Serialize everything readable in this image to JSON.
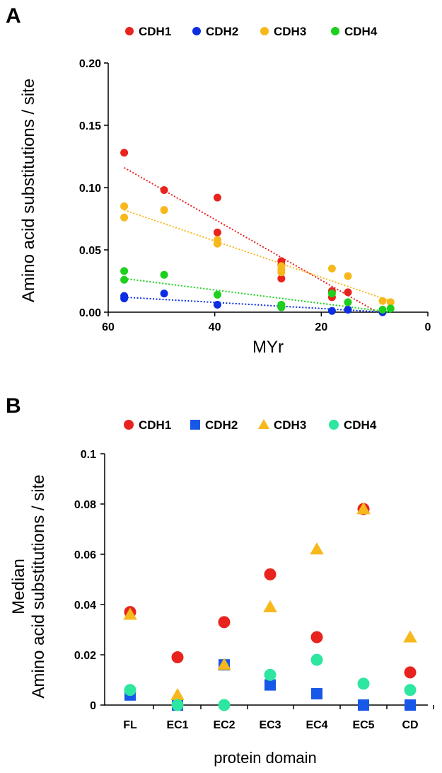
{
  "chart_data": [
    {
      "type": "scatter",
      "panel_label": "A",
      "xlabel": "MYr",
      "ylabel": "Amino acid substitutions / site",
      "xlim": [
        60,
        0
      ],
      "ylim": [
        0,
        0.2
      ],
      "x_ticks": [
        60,
        40,
        20,
        0
      ],
      "y_ticks": [
        0.0,
        0.05,
        0.1,
        0.15,
        0.2
      ],
      "y_tick_labels": [
        "0.00",
        "0.05",
        "0.10",
        "0.15",
        "0.20"
      ],
      "x_tick_labels": [
        "60",
        "40",
        "20",
        "0"
      ],
      "legend_position": "top",
      "series": [
        {
          "name": "CDH1",
          "color": "#e8231e",
          "marker": "circle",
          "points": [
            [
              57,
              0.128
            ],
            [
              49.5,
              0.098
            ],
            [
              39.5,
              0.092
            ],
            [
              39.5,
              0.064
            ],
            [
              27.5,
              0.041
            ],
            [
              27.5,
              0.038
            ],
            [
              27.5,
              0.027
            ],
            [
              18,
              0.017
            ],
            [
              18,
              0.012
            ],
            [
              15,
              0.016
            ],
            [
              8.5,
              0.0
            ]
          ],
          "trendline": [
            [
              57,
              0.116
            ],
            [
              9.5,
              0.0
            ]
          ]
        },
        {
          "name": "CDH2",
          "color": "#0c2ee0",
          "marker": "circle",
          "points": [
            [
              57,
              0.013
            ],
            [
              57,
              0.011
            ],
            [
              49.5,
              0.015
            ],
            [
              39.5,
              0.006
            ],
            [
              27.5,
              0.004
            ],
            [
              18,
              0.001
            ],
            [
              15,
              0.002
            ],
            [
              8.5,
              0.0
            ]
          ],
          "trendline": [
            [
              57,
              0.012
            ],
            [
              8,
              0.0
            ]
          ]
        },
        {
          "name": "CDH3",
          "color": "#f7b81c",
          "marker": "circle",
          "points": [
            [
              57,
              0.085
            ],
            [
              57,
              0.076
            ],
            [
              49.5,
              0.082
            ],
            [
              39.5,
              0.058
            ],
            [
              39.5,
              0.055
            ],
            [
              27.5,
              0.037
            ],
            [
              27.5,
              0.034
            ],
            [
              27.5,
              0.032
            ],
            [
              18,
              0.035
            ],
            [
              15,
              0.029
            ],
            [
              8.5,
              0.009
            ],
            [
              7,
              0.008
            ]
          ],
          "trendline": [
            [
              57,
              0.082
            ],
            [
              7,
              0.009
            ]
          ]
        },
        {
          "name": "CDH4",
          "color": "#1dd01d",
          "marker": "circle",
          "points": [
            [
              57,
              0.033
            ],
            [
              57,
              0.026
            ],
            [
              49.5,
              0.03
            ],
            [
              39.5,
              0.014
            ],
            [
              27.5,
              0.006
            ],
            [
              27.5,
              0.004
            ],
            [
              18,
              0.015
            ],
            [
              15,
              0.008
            ],
            [
              8.5,
              0.002
            ],
            [
              7,
              0.003
            ]
          ],
          "trendline": [
            [
              57,
              0.027
            ],
            [
              7,
              0.0
            ]
          ]
        }
      ]
    },
    {
      "type": "scatter",
      "panel_label": "B",
      "xlabel": "protein domain",
      "ylabel_line1": "Median",
      "ylabel_line2": "Amino acid substitutions / site",
      "ylim": [
        0,
        0.1
      ],
      "y_ticks": [
        0,
        0.02,
        0.04,
        0.06,
        0.08,
        0.1
      ],
      "y_tick_labels": [
        "0",
        "0.02",
        "0.04",
        "0.06",
        "0.08",
        "0.1"
      ],
      "categories": [
        "FL",
        "EC1",
        "EC2",
        "EC3",
        "EC4",
        "EC5",
        "CD"
      ],
      "legend_position": "top",
      "series": [
        {
          "name": "CDH1",
          "color": "#e8231e",
          "marker": "circle",
          "values": [
            0.037,
            0.019,
            0.033,
            0.052,
            0.027,
            0.078,
            0.013
          ]
        },
        {
          "name": "CDH2",
          "color": "#1758e8",
          "marker": "square",
          "values": [
            0.004,
            0.0,
            0.016,
            0.008,
            0.0045,
            0.0,
            0.0
          ]
        },
        {
          "name": "CDH3",
          "color": "#f7b81c",
          "marker": "triangle",
          "values": [
            0.036,
            0.004,
            0.016,
            0.039,
            0.062,
            0.078,
            0.027
          ]
        },
        {
          "name": "CDH4",
          "color": "#2de6a0",
          "marker": "circle",
          "values": [
            0.006,
            0.0,
            0.0,
            0.012,
            0.018,
            0.0085,
            0.006
          ]
        }
      ]
    }
  ]
}
